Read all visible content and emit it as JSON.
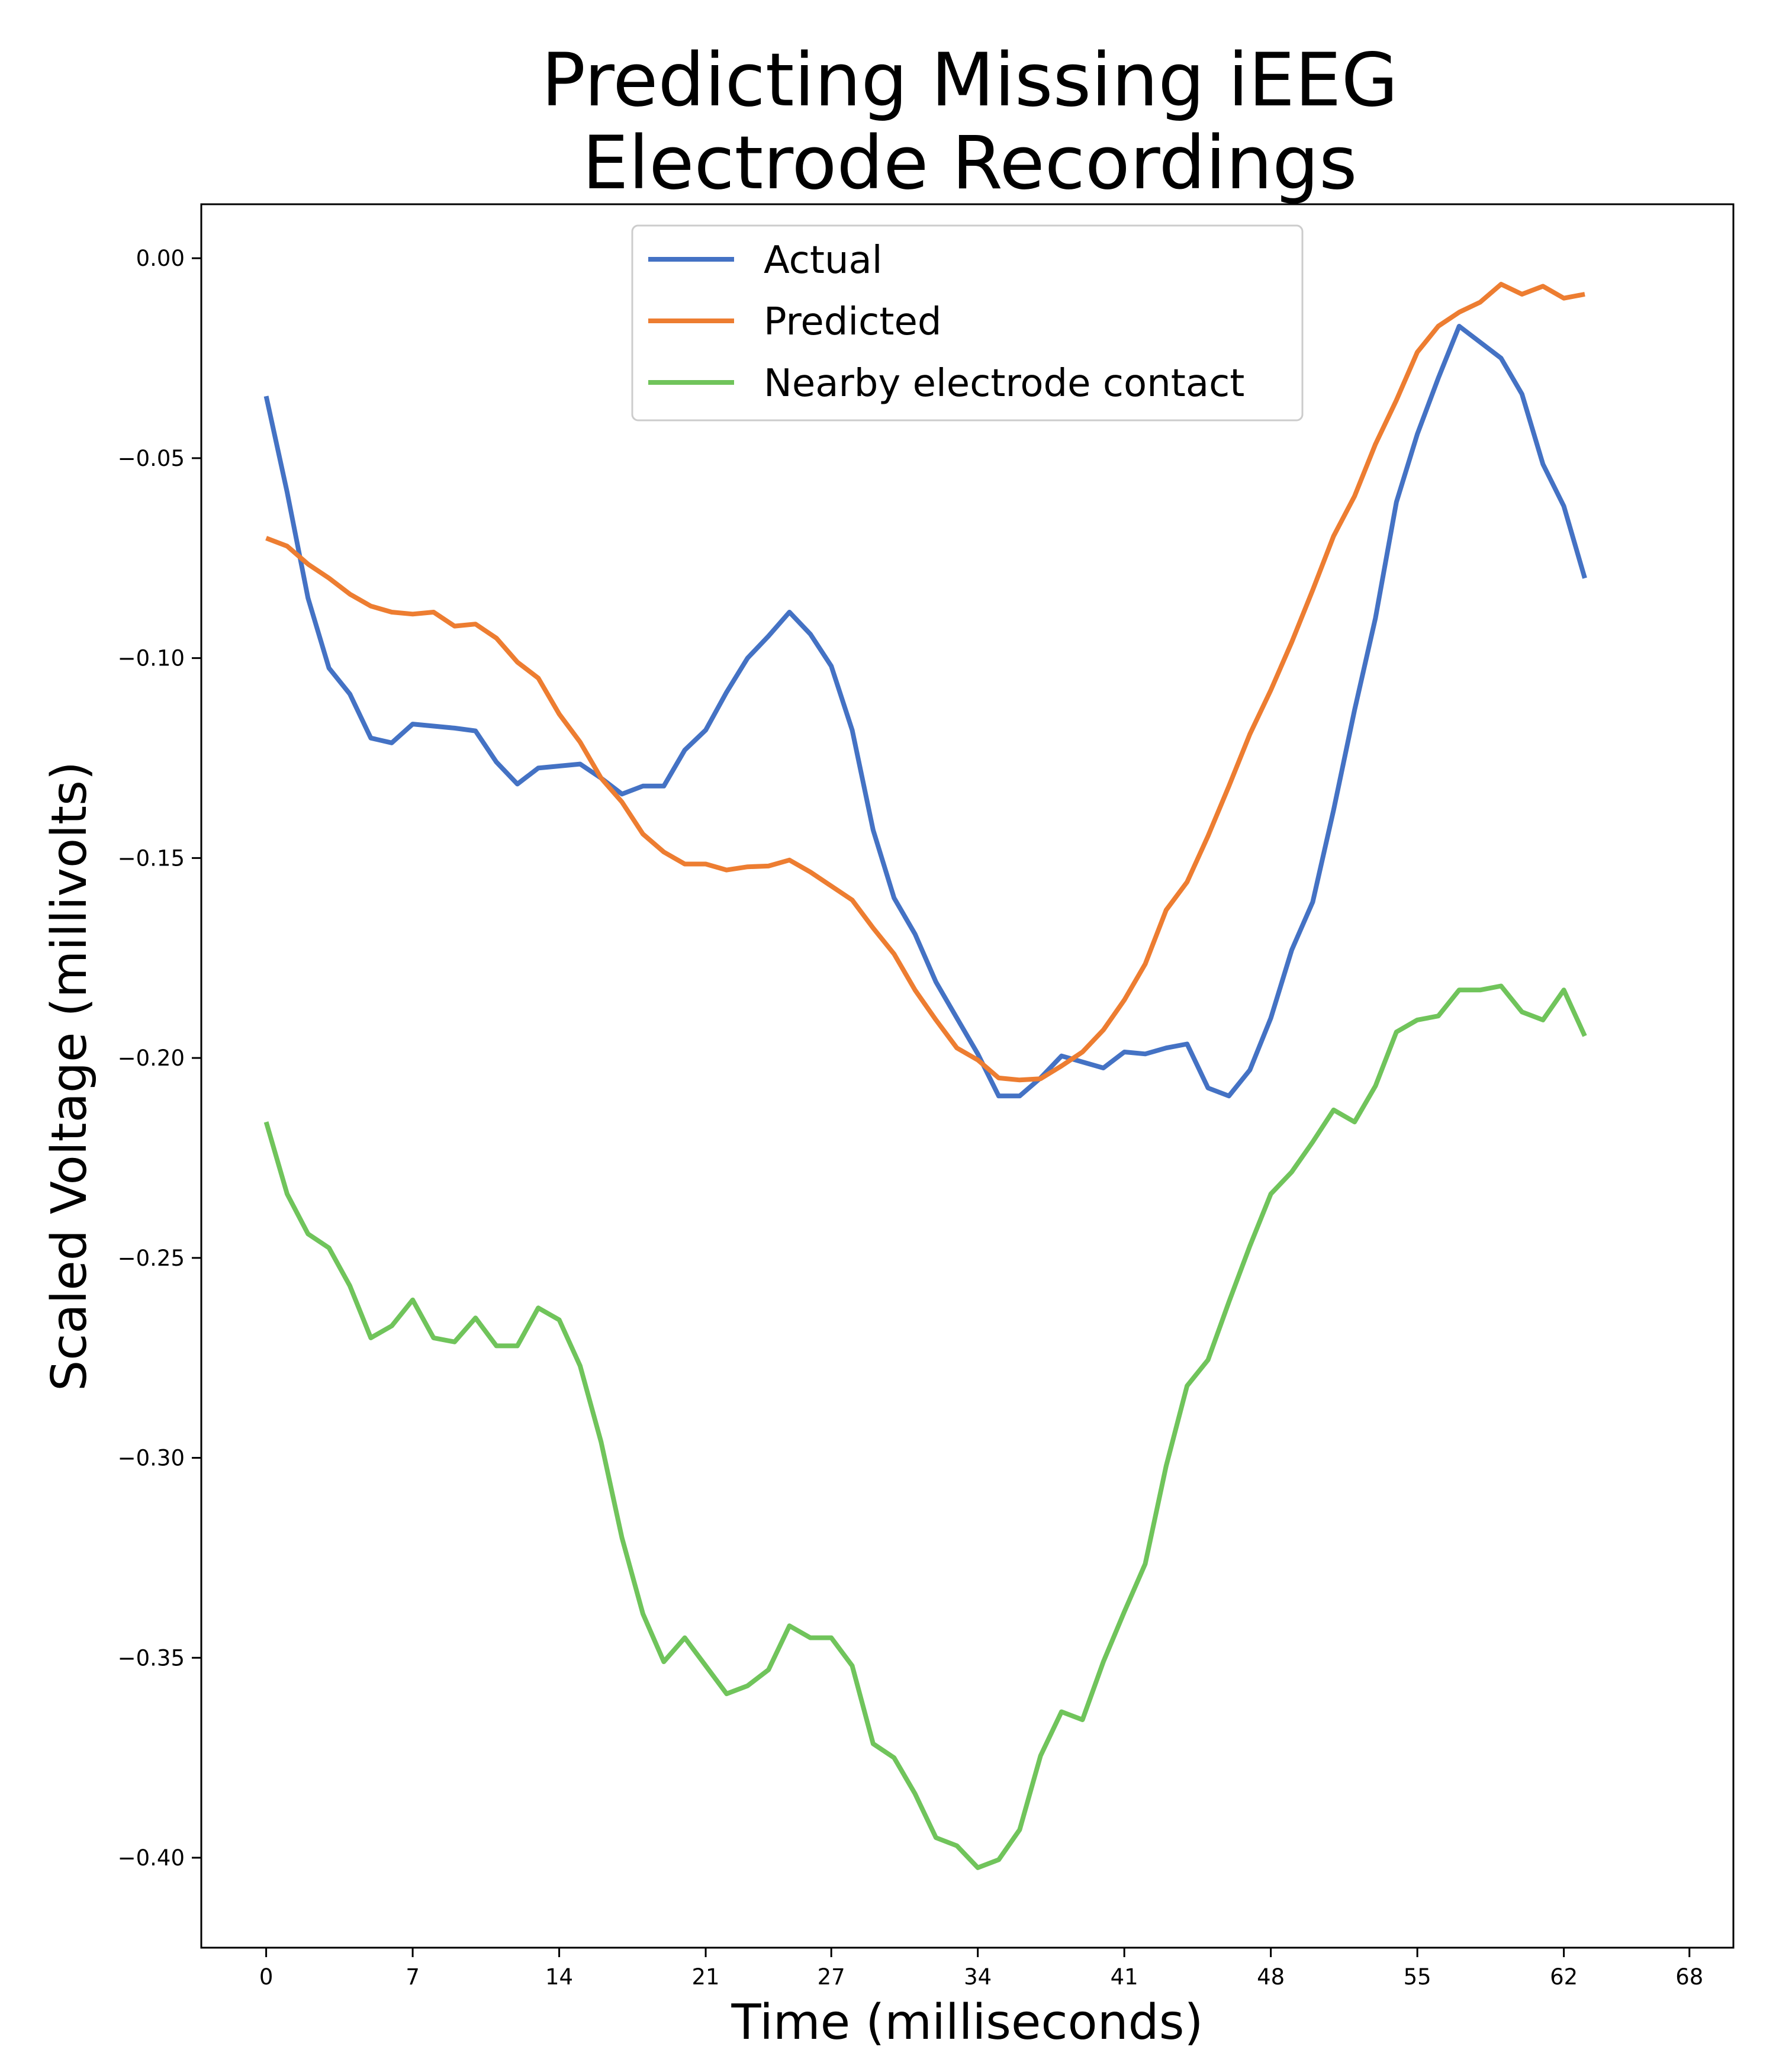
{
  "chart_data": {
    "type": "line",
    "title": [
      "Predicting Missing iEEG",
      "Electrode Recordings"
    ],
    "xlabel": "Time (milliseconds)",
    "ylabel": "Scaled Voltage (millivolts)",
    "xlim": [
      -3.1,
      70.1
    ],
    "ylim": [
      -0.4225,
      0.0135
    ],
    "xticks": [
      0,
      7,
      14,
      21,
      27,
      34,
      41,
      48,
      55,
      62,
      68
    ],
    "xtick_labels": [
      "0",
      "7",
      "14",
      "21",
      "27",
      "34",
      "41",
      "48",
      "55",
      "62",
      "68"
    ],
    "yticks": [
      0.0,
      -0.05,
      -0.1,
      -0.15,
      -0.2,
      -0.25,
      -0.3,
      -0.35,
      -0.4
    ],
    "ytick_labels": [
      "0.00",
      "−0.05",
      "−0.10",
      "−0.15",
      "−0.20",
      "−0.25",
      "−0.30",
      "−0.35",
      "−0.40"
    ],
    "grid": false,
    "legend_position": "top-center",
    "x": [
      0,
      1,
      2,
      3,
      4,
      5,
      6,
      7,
      8,
      9,
      10,
      11,
      12,
      13,
      14,
      15,
      16,
      17,
      18,
      19,
      20,
      21,
      22,
      23,
      24,
      25,
      26,
      27,
      28,
      29,
      30,
      31,
      32,
      33,
      34,
      35,
      36,
      37,
      38,
      39,
      40,
      41,
      42,
      43,
      44,
      45,
      46,
      47,
      48,
      49,
      50,
      51,
      52,
      53,
      54,
      55,
      56,
      57,
      58,
      59,
      60,
      61,
      62,
      63
    ],
    "series": [
      {
        "name": "Actual",
        "color": "#4472c4",
        "values": [
          -0.0345,
          -0.0585,
          -0.085,
          -0.1025,
          -0.109,
          -0.12,
          -0.1212,
          -0.1165,
          -0.117,
          -0.1175,
          -0.1182,
          -0.126,
          -0.1315,
          -0.1275,
          -0.127,
          -0.1265,
          -0.13,
          -0.134,
          -0.132,
          -0.132,
          -0.123,
          -0.118,
          -0.1085,
          -0.1,
          -0.0945,
          -0.0885,
          -0.094,
          -0.102,
          -0.118,
          -0.143,
          -0.16,
          -0.169,
          -0.181,
          -0.19,
          -0.199,
          -0.2095,
          -0.2095,
          -0.205,
          -0.1995,
          -0.201,
          -0.2025,
          -0.1985,
          -0.199,
          -0.1975,
          -0.1965,
          -0.2075,
          -0.2095,
          -0.203,
          -0.19,
          -0.173,
          -0.161,
          -0.138,
          -0.113,
          -0.09,
          -0.061,
          -0.044,
          -0.03,
          -0.017,
          -0.021,
          -0.025,
          -0.034,
          -0.0515,
          -0.062,
          -0.08
        ]
      },
      {
        "name": "Predicted",
        "color": "#ed7d31",
        "values": [
          -0.07,
          -0.072,
          -0.0765,
          -0.08,
          -0.084,
          -0.087,
          -0.0885,
          -0.089,
          -0.0885,
          -0.092,
          -0.0915,
          -0.095,
          -0.101,
          -0.105,
          -0.114,
          -0.121,
          -0.13,
          -0.136,
          -0.144,
          -0.1485,
          -0.1515,
          -0.1515,
          -0.153,
          -0.1522,
          -0.152,
          -0.1505,
          -0.1535,
          -0.157,
          -0.1605,
          -0.1675,
          -0.174,
          -0.183,
          -0.1905,
          -0.1975,
          -0.2005,
          -0.205,
          -0.2055,
          -0.2052,
          -0.202,
          -0.1985,
          -0.193,
          -0.1855,
          -0.1765,
          -0.163,
          -0.156,
          -0.1445,
          -0.132,
          -0.119,
          -0.108,
          -0.096,
          -0.083,
          -0.0695,
          -0.0595,
          -0.0465,
          -0.0355,
          -0.0235,
          -0.017,
          -0.0135,
          -0.011,
          -0.0065,
          -0.009,
          -0.007,
          -0.01,
          -0.009
        ]
      },
      {
        "name": "Nearby electrode contact",
        "color": "#70c45b",
        "values": [
          -0.216,
          -0.234,
          -0.244,
          -0.2475,
          -0.257,
          -0.27,
          -0.267,
          -0.2605,
          -0.27,
          -0.271,
          -0.265,
          -0.272,
          -0.272,
          -0.2625,
          -0.2655,
          -0.277,
          -0.296,
          -0.32,
          -0.339,
          -0.351,
          -0.345,
          -0.352,
          -0.359,
          -0.357,
          -0.353,
          -0.342,
          -0.345,
          -0.345,
          -0.352,
          -0.3715,
          -0.375,
          -0.384,
          -0.395,
          -0.397,
          -0.4025,
          -0.4005,
          -0.393,
          -0.3745,
          -0.3635,
          -0.3655,
          -0.351,
          -0.3385,
          -0.3265,
          -0.302,
          -0.282,
          -0.2755,
          -0.261,
          -0.247,
          -0.234,
          -0.2285,
          -0.221,
          -0.213,
          -0.216,
          -0.207,
          -0.1935,
          -0.1905,
          -0.1895,
          -0.183,
          -0.183,
          -0.182,
          -0.1885,
          -0.1905,
          -0.183,
          -0.1945
        ]
      }
    ]
  }
}
